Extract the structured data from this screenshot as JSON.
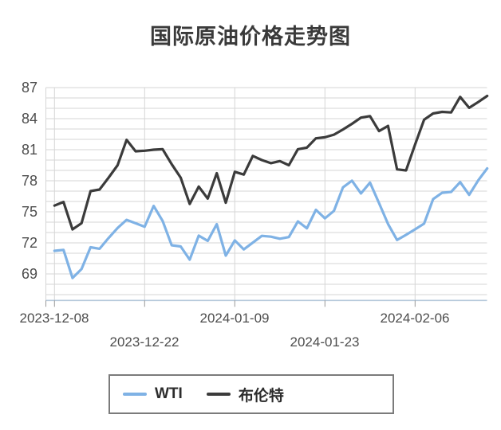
{
  "title": "国际原油价格走势图",
  "legend": {
    "items": [
      {
        "label": "WTI",
        "color": "#7FB2E5"
      },
      {
        "label": "布伦特",
        "color": "#3b3b3b"
      }
    ]
  },
  "colors": {
    "wti_line": "#7FB2E5",
    "brent_line": "#3b3b3b",
    "grid_line": "#d6d6d6",
    "axis_line": "#b5c8db",
    "tick_mark": "#999999",
    "axis_label": "#4d4d4d",
    "title_text": "#3a3a3a",
    "legend_border": "#7b7b7b"
  },
  "chart_data": {
    "type": "line",
    "title": "国际原油价格走势图",
    "x": [
      "2023-12-08",
      "2023-12-11",
      "2023-12-12",
      "2023-12-13",
      "2023-12-14",
      "2023-12-15",
      "2023-12-18",
      "2023-12-19",
      "2023-12-20",
      "2023-12-21",
      "2023-12-22",
      "2023-12-26",
      "2023-12-27",
      "2023-12-28",
      "2023-12-29",
      "2024-01-02",
      "2024-01-03",
      "2024-01-04",
      "2024-01-05",
      "2024-01-08",
      "2024-01-09",
      "2024-01-10",
      "2024-01-11",
      "2024-01-12",
      "2024-01-15",
      "2024-01-16",
      "2024-01-17",
      "2024-01-18",
      "2024-01-19",
      "2024-01-22",
      "2024-01-23",
      "2024-01-24",
      "2024-01-25",
      "2024-01-26",
      "2024-01-29",
      "2024-01-30",
      "2024-01-31",
      "2024-02-01",
      "2024-02-02",
      "2024-02-05",
      "2024-02-06",
      "2024-02-07",
      "2024-02-08",
      "2024-02-09",
      "2024-02-12",
      "2024-02-13",
      "2024-02-14",
      "2024-02-15",
      "2024-02-16"
    ],
    "series": [
      {
        "name": "WTI",
        "color": "#7FB2E5",
        "values": [
          71.23,
          71.32,
          68.61,
          69.47,
          71.58,
          71.43,
          72.47,
          73.44,
          74.22,
          73.89,
          73.56,
          75.57,
          74.11,
          71.77,
          71.65,
          70.38,
          72.7,
          72.19,
          73.81,
          70.77,
          72.24,
          71.37,
          72.02,
          72.68,
          72.6,
          72.4,
          72.56,
          74.08,
          73.41,
          75.19,
          74.37,
          75.09,
          77.36,
          78.01,
          76.78,
          77.82,
          75.85,
          73.82,
          72.28,
          72.78,
          73.31,
          73.86,
          76.22,
          76.84,
          76.92,
          77.87,
          76.64,
          78.03,
          79.19
        ]
      },
      {
        "name": "布伦特",
        "color": "#3b3b3b",
        "values": [
          75.6,
          75.95,
          73.3,
          73.9,
          77.0,
          77.15,
          78.3,
          79.5,
          81.95,
          80.85,
          80.9,
          81.0,
          81.05,
          79.6,
          78.3,
          75.76,
          77.44,
          76.28,
          78.73,
          75.88,
          78.86,
          78.6,
          80.4,
          80.0,
          79.7,
          79.9,
          79.5,
          81.05,
          81.2,
          82.1,
          82.2,
          82.45,
          82.95,
          83.5,
          84.1,
          84.25,
          82.8,
          83.3,
          79.1,
          79.0,
          81.5,
          83.9,
          84.5,
          84.65,
          84.6,
          86.1,
          85.05,
          85.6,
          86.2
        ]
      }
    ],
    "xlabel": "",
    "ylabel": "",
    "ylim": [
      66.5,
      87.3
    ],
    "yticks": [
      69,
      72,
      75,
      78,
      81,
      84,
      87
    ],
    "ytick_minor_step": 1,
    "xticks": {
      "indices": [
        0,
        10,
        20,
        30,
        40
      ],
      "labels": [
        "2023-12-08",
        "2023-12-22",
        "2024-01-09",
        "2024-01-23",
        "2024-02-06"
      ],
      "stagger": true
    },
    "grid": true,
    "legend_position": "bottom"
  }
}
